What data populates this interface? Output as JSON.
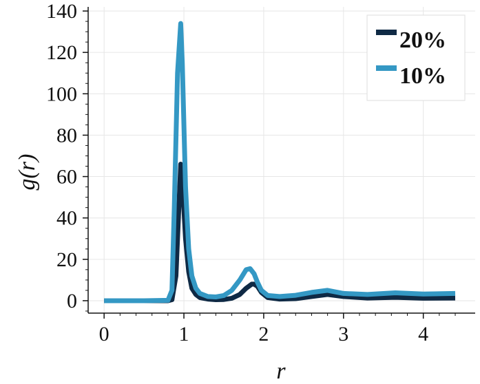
{
  "chart_data": {
    "type": "line",
    "xlabel": "r",
    "ylabel": "g(r)",
    "xlim": [
      -0.2,
      4.65
    ],
    "ylim": [
      -6,
      142
    ],
    "x_ticks": [
      0,
      1,
      2,
      3,
      4
    ],
    "y_ticks": [
      0,
      20,
      40,
      60,
      80,
      100,
      120,
      140
    ],
    "x_tick_labels": [
      "0",
      "1",
      "2",
      "3",
      "4"
    ],
    "y_tick_labels": [
      "0",
      "20",
      "40",
      "60",
      "80",
      "100",
      "120",
      "140"
    ],
    "grid": true,
    "legend_position": "top-right",
    "series": [
      {
        "name": "20%",
        "color": "#0f2a45",
        "x": [
          0.0,
          0.5,
          0.8,
          0.85,
          0.9,
          0.94,
          0.96,
          0.98,
          1.02,
          1.06,
          1.1,
          1.15,
          1.2,
          1.3,
          1.4,
          1.5,
          1.6,
          1.7,
          1.78,
          1.85,
          1.88,
          1.92,
          1.97,
          2.05,
          2.2,
          2.4,
          2.6,
          2.8,
          3.0,
          3.3,
          3.65,
          4.0,
          4.4
        ],
        "y": [
          0,
          0,
          0,
          0.5,
          12,
          48,
          66,
          58,
          30,
          14,
          6,
          3,
          1.5,
          0.8,
          0.5,
          0.6,
          1.2,
          3,
          6,
          8,
          8,
          7,
          4,
          1.5,
          0.8,
          1,
          2,
          3,
          2,
          1.3,
          1.6,
          1.2,
          1.3
        ]
      },
      {
        "name": "10%",
        "color": "#3498c4",
        "x": [
          0.0,
          0.5,
          0.8,
          0.85,
          0.88,
          0.92,
          0.96,
          0.98,
          1.02,
          1.06,
          1.1,
          1.15,
          1.2,
          1.3,
          1.4,
          1.5,
          1.6,
          1.7,
          1.78,
          1.83,
          1.88,
          1.92,
          1.97,
          2.05,
          2.2,
          2.4,
          2.6,
          2.8,
          3.0,
          3.3,
          3.65,
          4.0,
          4.4
        ],
        "y": [
          0,
          0,
          0.2,
          5,
          45,
          110,
          134,
          115,
          55,
          25,
          12,
          6,
          3.5,
          2,
          1.8,
          2.5,
          5,
          10,
          15,
          15.5,
          13,
          9,
          5,
          2.5,
          2,
          2.6,
          4,
          5,
          3.5,
          3,
          3.8,
          3.2,
          3.5
        ]
      }
    ]
  }
}
